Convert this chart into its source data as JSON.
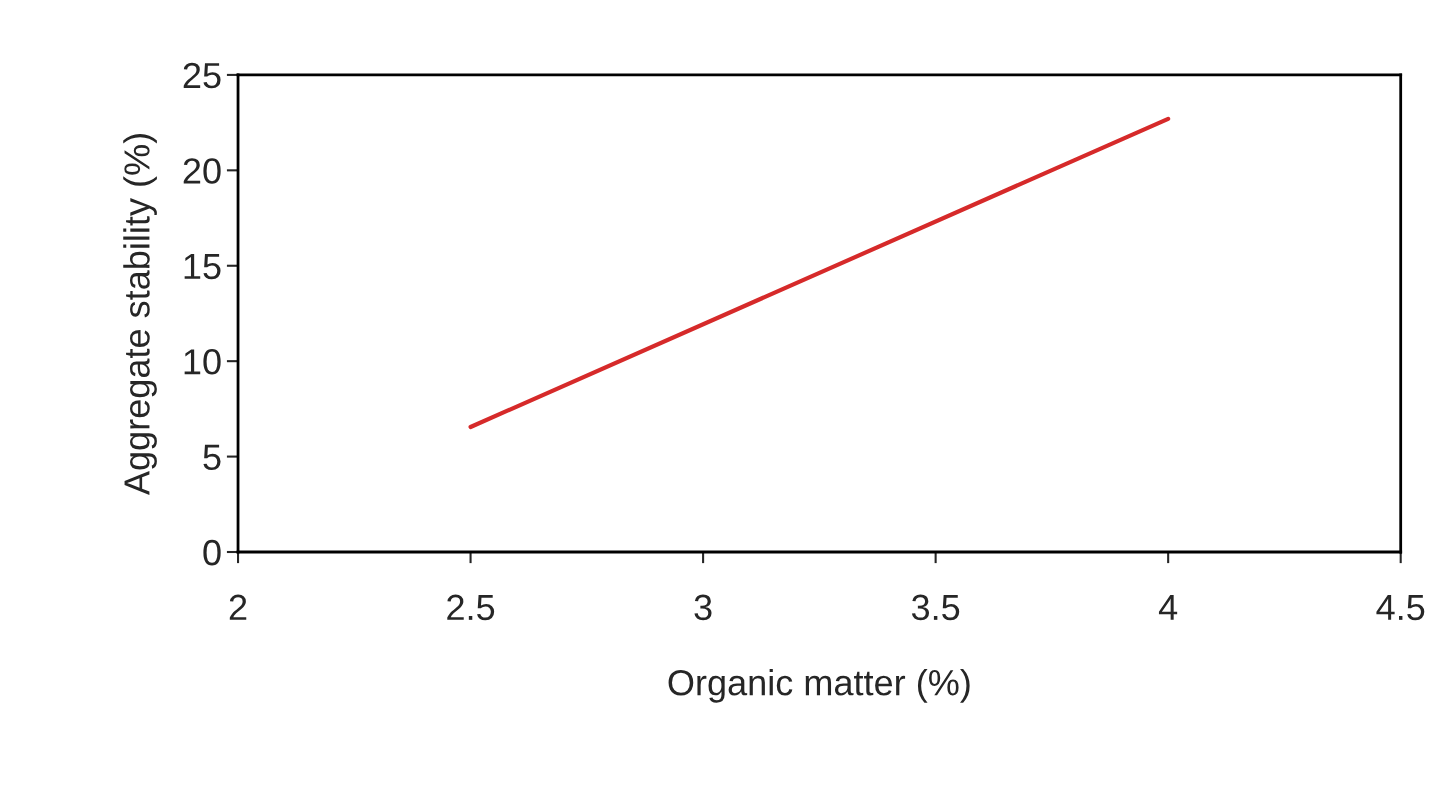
{
  "chart_data": {
    "type": "line",
    "xlabel": "Organic matter (%)",
    "ylabel": "Aggregate stability (%)",
    "x": [
      2.5,
      4
    ],
    "series": [
      {
        "color": "#d62a2a",
        "values": [
          6.55,
          22.7
        ]
      }
    ],
    "xlim": [
      2,
      4.5
    ],
    "xticks": [
      2,
      2.5,
      3,
      3.5,
      4,
      4.5
    ],
    "ylim": [
      0,
      25
    ],
    "yticks": [
      0,
      5,
      10,
      15,
      20,
      25
    ],
    "grid": false,
    "marker": "none",
    "line_style": "solid"
  }
}
